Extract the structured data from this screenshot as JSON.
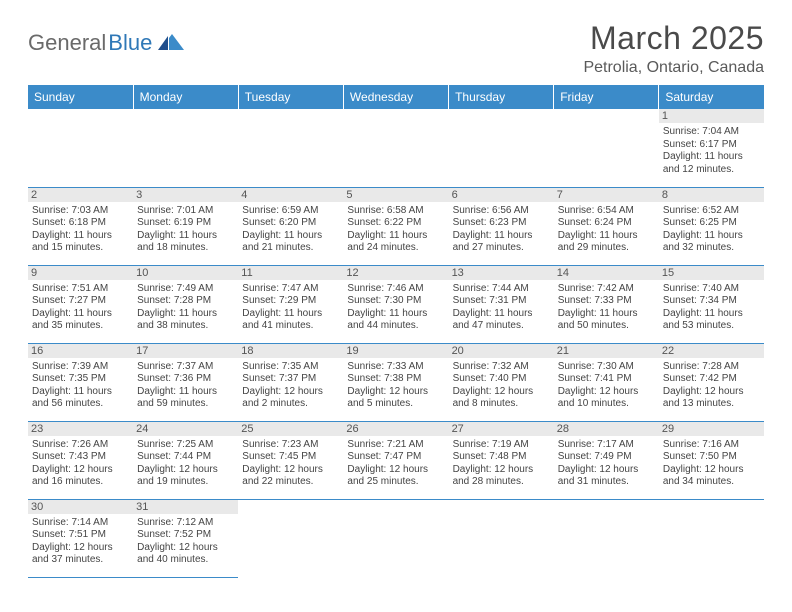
{
  "logo": {
    "text1": "General",
    "text2": "Blue"
  },
  "title": "March 2025",
  "location": "Petrolia, Ontario, Canada",
  "header_bg": "#3b8bc9",
  "header_fg": "#ffffff",
  "border_color": "#3b8bc9",
  "daynum_bg": "#e9e9e9",
  "weekdays": [
    "Sunday",
    "Monday",
    "Tuesday",
    "Wednesday",
    "Thursday",
    "Friday",
    "Saturday"
  ],
  "grid": [
    [
      {
        "blank": true
      },
      {
        "blank": true
      },
      {
        "blank": true
      },
      {
        "blank": true
      },
      {
        "blank": true
      },
      {
        "blank": true
      },
      {
        "day": "1",
        "sunrise": "Sunrise: 7:04 AM",
        "sunset": "Sunset: 6:17 PM",
        "daylight1": "Daylight: 11 hours",
        "daylight2": "and 12 minutes."
      }
    ],
    [
      {
        "day": "2",
        "sunrise": "Sunrise: 7:03 AM",
        "sunset": "Sunset: 6:18 PM",
        "daylight1": "Daylight: 11 hours",
        "daylight2": "and 15 minutes."
      },
      {
        "day": "3",
        "sunrise": "Sunrise: 7:01 AM",
        "sunset": "Sunset: 6:19 PM",
        "daylight1": "Daylight: 11 hours",
        "daylight2": "and 18 minutes."
      },
      {
        "day": "4",
        "sunrise": "Sunrise: 6:59 AM",
        "sunset": "Sunset: 6:20 PM",
        "daylight1": "Daylight: 11 hours",
        "daylight2": "and 21 minutes."
      },
      {
        "day": "5",
        "sunrise": "Sunrise: 6:58 AM",
        "sunset": "Sunset: 6:22 PM",
        "daylight1": "Daylight: 11 hours",
        "daylight2": "and 24 minutes."
      },
      {
        "day": "6",
        "sunrise": "Sunrise: 6:56 AM",
        "sunset": "Sunset: 6:23 PM",
        "daylight1": "Daylight: 11 hours",
        "daylight2": "and 27 minutes."
      },
      {
        "day": "7",
        "sunrise": "Sunrise: 6:54 AM",
        "sunset": "Sunset: 6:24 PM",
        "daylight1": "Daylight: 11 hours",
        "daylight2": "and 29 minutes."
      },
      {
        "day": "8",
        "sunrise": "Sunrise: 6:52 AM",
        "sunset": "Sunset: 6:25 PM",
        "daylight1": "Daylight: 11 hours",
        "daylight2": "and 32 minutes."
      }
    ],
    [
      {
        "day": "9",
        "sunrise": "Sunrise: 7:51 AM",
        "sunset": "Sunset: 7:27 PM",
        "daylight1": "Daylight: 11 hours",
        "daylight2": "and 35 minutes."
      },
      {
        "day": "10",
        "sunrise": "Sunrise: 7:49 AM",
        "sunset": "Sunset: 7:28 PM",
        "daylight1": "Daylight: 11 hours",
        "daylight2": "and 38 minutes."
      },
      {
        "day": "11",
        "sunrise": "Sunrise: 7:47 AM",
        "sunset": "Sunset: 7:29 PM",
        "daylight1": "Daylight: 11 hours",
        "daylight2": "and 41 minutes."
      },
      {
        "day": "12",
        "sunrise": "Sunrise: 7:46 AM",
        "sunset": "Sunset: 7:30 PM",
        "daylight1": "Daylight: 11 hours",
        "daylight2": "and 44 minutes."
      },
      {
        "day": "13",
        "sunrise": "Sunrise: 7:44 AM",
        "sunset": "Sunset: 7:31 PM",
        "daylight1": "Daylight: 11 hours",
        "daylight2": "and 47 minutes."
      },
      {
        "day": "14",
        "sunrise": "Sunrise: 7:42 AM",
        "sunset": "Sunset: 7:33 PM",
        "daylight1": "Daylight: 11 hours",
        "daylight2": "and 50 minutes."
      },
      {
        "day": "15",
        "sunrise": "Sunrise: 7:40 AM",
        "sunset": "Sunset: 7:34 PM",
        "daylight1": "Daylight: 11 hours",
        "daylight2": "and 53 minutes."
      }
    ],
    [
      {
        "day": "16",
        "sunrise": "Sunrise: 7:39 AM",
        "sunset": "Sunset: 7:35 PM",
        "daylight1": "Daylight: 11 hours",
        "daylight2": "and 56 minutes."
      },
      {
        "day": "17",
        "sunrise": "Sunrise: 7:37 AM",
        "sunset": "Sunset: 7:36 PM",
        "daylight1": "Daylight: 11 hours",
        "daylight2": "and 59 minutes."
      },
      {
        "day": "18",
        "sunrise": "Sunrise: 7:35 AM",
        "sunset": "Sunset: 7:37 PM",
        "daylight1": "Daylight: 12 hours",
        "daylight2": "and 2 minutes."
      },
      {
        "day": "19",
        "sunrise": "Sunrise: 7:33 AM",
        "sunset": "Sunset: 7:38 PM",
        "daylight1": "Daylight: 12 hours",
        "daylight2": "and 5 minutes."
      },
      {
        "day": "20",
        "sunrise": "Sunrise: 7:32 AM",
        "sunset": "Sunset: 7:40 PM",
        "daylight1": "Daylight: 12 hours",
        "daylight2": "and 8 minutes."
      },
      {
        "day": "21",
        "sunrise": "Sunrise: 7:30 AM",
        "sunset": "Sunset: 7:41 PM",
        "daylight1": "Daylight: 12 hours",
        "daylight2": "and 10 minutes."
      },
      {
        "day": "22",
        "sunrise": "Sunrise: 7:28 AM",
        "sunset": "Sunset: 7:42 PM",
        "daylight1": "Daylight: 12 hours",
        "daylight2": "and 13 minutes."
      }
    ],
    [
      {
        "day": "23",
        "sunrise": "Sunrise: 7:26 AM",
        "sunset": "Sunset: 7:43 PM",
        "daylight1": "Daylight: 12 hours",
        "daylight2": "and 16 minutes."
      },
      {
        "day": "24",
        "sunrise": "Sunrise: 7:25 AM",
        "sunset": "Sunset: 7:44 PM",
        "daylight1": "Daylight: 12 hours",
        "daylight2": "and 19 minutes."
      },
      {
        "day": "25",
        "sunrise": "Sunrise: 7:23 AM",
        "sunset": "Sunset: 7:45 PM",
        "daylight1": "Daylight: 12 hours",
        "daylight2": "and 22 minutes."
      },
      {
        "day": "26",
        "sunrise": "Sunrise: 7:21 AM",
        "sunset": "Sunset: 7:47 PM",
        "daylight1": "Daylight: 12 hours",
        "daylight2": "and 25 minutes."
      },
      {
        "day": "27",
        "sunrise": "Sunrise: 7:19 AM",
        "sunset": "Sunset: 7:48 PM",
        "daylight1": "Daylight: 12 hours",
        "daylight2": "and 28 minutes."
      },
      {
        "day": "28",
        "sunrise": "Sunrise: 7:17 AM",
        "sunset": "Sunset: 7:49 PM",
        "daylight1": "Daylight: 12 hours",
        "daylight2": "and 31 minutes."
      },
      {
        "day": "29",
        "sunrise": "Sunrise: 7:16 AM",
        "sunset": "Sunset: 7:50 PM",
        "daylight1": "Daylight: 12 hours",
        "daylight2": "and 34 minutes."
      }
    ],
    [
      {
        "day": "30",
        "sunrise": "Sunrise: 7:14 AM",
        "sunset": "Sunset: 7:51 PM",
        "daylight1": "Daylight: 12 hours",
        "daylight2": "and 37 minutes."
      },
      {
        "day": "31",
        "sunrise": "Sunrise: 7:12 AM",
        "sunset": "Sunset: 7:52 PM",
        "daylight1": "Daylight: 12 hours",
        "daylight2": "and 40 minutes."
      },
      {
        "blank": true,
        "trailing": true
      },
      {
        "blank": true,
        "trailing": true
      },
      {
        "blank": true,
        "trailing": true
      },
      {
        "blank": true,
        "trailing": true
      },
      {
        "blank": true,
        "trailing": true
      }
    ]
  ]
}
